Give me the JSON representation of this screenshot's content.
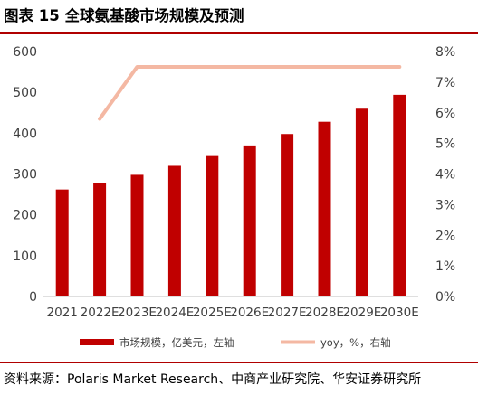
{
  "title": "图表 15 全球氨基酸市场规模及预测",
  "source": "资料来源：Polaris Market Research、中商产业研究院、华安证券研究所",
  "colors": {
    "bar": "#c00000",
    "line": "#f4b8a3",
    "axis_text": "#404040",
    "rule": "#b00000"
  },
  "chart_data": {
    "type": "bar",
    "categories": [
      "2021",
      "2022E",
      "2023E",
      "2024E",
      "2025E",
      "2026E",
      "2027E",
      "2028E",
      "2029E",
      "2030E"
    ],
    "series": [
      {
        "name": "市场规模，亿美元，左轴",
        "type": "bar",
        "axis": "left",
        "values": [
          262,
          277,
          298,
          320,
          344,
          370,
          398,
          428,
          460,
          494
        ]
      },
      {
        "name": "yoy，%，右轴",
        "type": "line",
        "axis": "right",
        "values": [
          null,
          5.8,
          7.5,
          7.5,
          7.5,
          7.5,
          7.5,
          7.5,
          7.5,
          7.5
        ]
      }
    ],
    "y_left": {
      "range": [
        0,
        600
      ],
      "ticks": [
        "0",
        "100",
        "200",
        "300",
        "400",
        "500",
        "600"
      ]
    },
    "y_right": {
      "range": [
        0,
        8
      ],
      "ticks": [
        "0%",
        "1%",
        "2%",
        "3%",
        "4%",
        "5%",
        "6%",
        "7%",
        "8%"
      ]
    },
    "grid": false,
    "legend_position": "bottom"
  }
}
